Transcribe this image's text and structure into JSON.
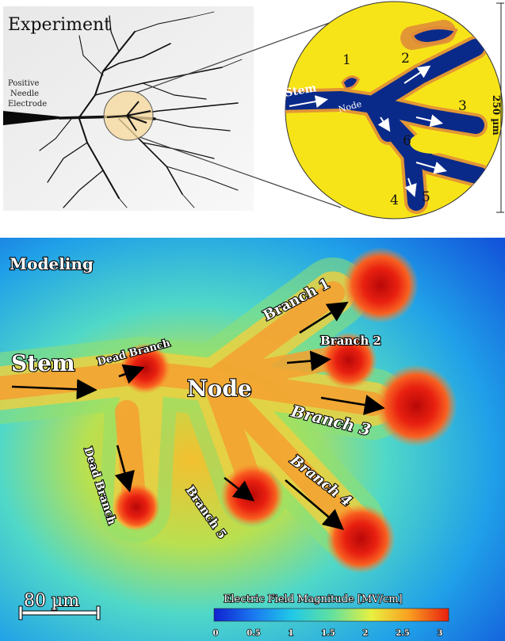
{
  "experiment": {
    "title": "Experiment",
    "electrode_label": [
      "Positive",
      "Needle",
      "Electrode"
    ],
    "zoom": {
      "stem": "Stem",
      "node": "Node",
      "branches": [
        "1",
        "2",
        "3",
        "4",
        "5",
        "6"
      ],
      "scale": "250 µm"
    }
  },
  "modeling": {
    "title": "Modeling",
    "labels": {
      "stem": "Stem",
      "node": "Node",
      "dead_branch_top": "Dead Branch",
      "dead_branch_left": "Dead Branch",
      "branch1": "Branch 1",
      "branch2": "Branch 2",
      "branch3": "Branch 3",
      "branch4": "Branch 4",
      "branch5": "Branch 5"
    },
    "scale_bar": "80 µm",
    "colorbar": {
      "title": "Electric Field Magnitude [MV/cm]",
      "ticks": [
        "0",
        "0.5",
        "1",
        "1.5",
        "2",
        "2.5",
        "3"
      ],
      "colors": [
        "#1020d0",
        "#1a7af0",
        "#20c8e8",
        "#60e0a0",
        "#e8f040",
        "#f8a020",
        "#e82010"
      ]
    }
  }
}
